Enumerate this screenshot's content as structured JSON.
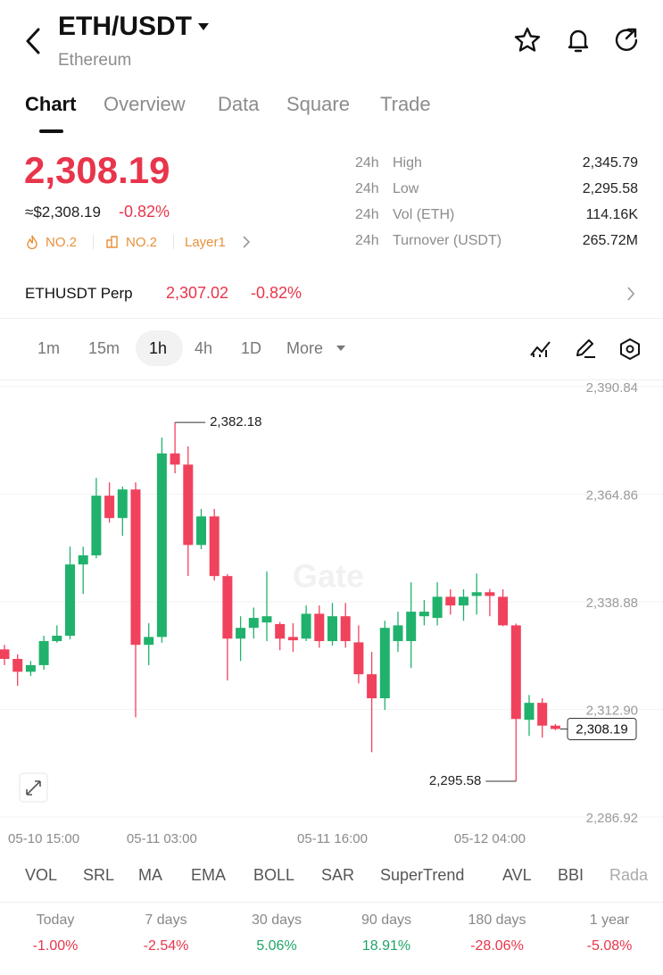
{
  "header": {
    "title": "ETH/USDT",
    "subtitle": "Ethereum"
  },
  "tabs": [
    "Chart",
    "Overview",
    "Data",
    "Square",
    "Trade"
  ],
  "price": {
    "last": "2,308.19",
    "approx": "≈$2,308.19",
    "change": "-0.82%"
  },
  "badges": [
    "NO.2",
    "NO.2",
    "Layer1"
  ],
  "stats": [
    {
      "period": "24h",
      "label": "High",
      "value": "2,345.79"
    },
    {
      "period": "24h",
      "label": "Low",
      "value": "2,295.58"
    },
    {
      "period": "24h",
      "label": "Vol (ETH)",
      "value": "114.16K"
    },
    {
      "period": "24h",
      "label": "Turnover (USDT)",
      "value": "265.72M"
    }
  ],
  "perp": {
    "name": "ETHUSDT Perp",
    "price": "2,307.02",
    "change": "-0.82%"
  },
  "intervals": [
    "1m",
    "15m",
    "1h",
    "4h",
    "1D",
    "More"
  ],
  "indicators": [
    "VOL",
    "SRL",
    "MA",
    "EMA",
    "BOLL",
    "SAR",
    "SuperTrend",
    "AVL",
    "BBI",
    "Rada"
  ],
  "performance": [
    {
      "period": "Today",
      "change": "-1.00%",
      "color": "#e8354b"
    },
    {
      "period": "7 days",
      "change": "-2.54%",
      "color": "#e8354b"
    },
    {
      "period": "30 days",
      "change": "5.06%",
      "color": "#1fa567"
    },
    {
      "period": "90 days",
      "change": "18.91%",
      "color": "#1fa567"
    },
    {
      "period": "180 days",
      "change": "-28.06%",
      "color": "#e8354b"
    },
    {
      "period": "1 year",
      "change": "-5.08%",
      "color": "#e8354b"
    }
  ],
  "chart_data": {
    "type": "candlestick",
    "watermark": "Gate",
    "up_color": "#20b26c",
    "down_color": "#f0425c",
    "categories": [
      null,
      null,
      null,
      "05-10 15:00",
      null,
      null,
      null,
      null,
      null,
      null,
      null,
      null,
      "05-11 03:00",
      null,
      null,
      null,
      null,
      null,
      null,
      null,
      null,
      null,
      null,
      null,
      null,
      "05-11 16:00",
      null,
      null,
      null,
      null,
      null,
      null,
      null,
      null,
      null,
      null,
      null,
      "05-12 04:00",
      null,
      null,
      null,
      null,
      null
    ],
    "open": [
      2327.4,
      2325.1,
      2322.0,
      2323.6,
      2329.4,
      2330.7,
      2347.9,
      2350.1,
      2364.5,
      2359.1,
      2366.0,
      2328.5,
      2330.4,
      2374.7,
      2372.0,
      2352.6,
      2359.5,
      2345.1,
      2330.0,
      2332.6,
      2333.9,
      2333.5,
      2330.4,
      2330.0,
      2336.0,
      2329.4,
      2335.4,
      2329.1,
      2321.4,
      2315.6,
      2329.4,
      2329.4,
      2335.4,
      2335.0,
      2340.1,
      2338.0,
      2340.3,
      2341.2,
      2340.1,
      2333.2,
      2310.4,
      2314.5,
      2309.0
    ],
    "high": [
      2328.5,
      2326.2,
      2324.6,
      2330.7,
      2333.2,
      2352.2,
      2352.2,
      2368.8,
      2367.7,
      2366.7,
      2367.7,
      2333.7,
      2378.5,
      2382.18,
      2376.4,
      2361.3,
      2361.3,
      2345.6,
      2335.4,
      2337.5,
      2346.2,
      2334.0,
      2333.7,
      2338.0,
      2338.0,
      2338.6,
      2338.6,
      2333.2,
      2326.8,
      2334.3,
      2336.5,
      2343.6,
      2339.3,
      2343.6,
      2341.9,
      2341.9,
      2345.7,
      2342.0,
      2341.9,
      2333.6,
      2316.4,
      2315.6,
      2309.4
    ],
    "low": [
      2323.6,
      2318.6,
      2321.0,
      2322.5,
      2329.0,
      2329.8,
      2340.8,
      2349.4,
      2358.0,
      2354.8,
      2311.0,
      2323.6,
      2329.0,
      2369.9,
      2345.1,
      2351.6,
      2344.0,
      2319.9,
      2324.6,
      2330.0,
      2329.4,
      2327.2,
      2326.8,
      2329.4,
      2327.8,
      2328.3,
      2327.8,
      2319.2,
      2302.6,
      2312.8,
      2326.8,
      2322.9,
      2333.2,
      2333.2,
      2335.8,
      2334.3,
      2335.8,
      2335.4,
      2333.0,
      2295.58,
      2306.5,
      2306.1,
      2307.9
    ],
    "close": [
      2325.1,
      2322.0,
      2323.6,
      2329.4,
      2330.7,
      2347.9,
      2350.1,
      2364.5,
      2359.1,
      2366.0,
      2328.5,
      2330.4,
      2374.7,
      2372.0,
      2352.6,
      2359.5,
      2345.1,
      2330.0,
      2332.6,
      2335.0,
      2335.4,
      2330.0,
      2329.6,
      2336.0,
      2329.4,
      2335.4,
      2329.4,
      2321.4,
      2315.6,
      2332.6,
      2333.2,
      2336.5,
      2336.5,
      2340.1,
      2338.0,
      2340.1,
      2341.2,
      2340.3,
      2333.2,
      2310.6,
      2314.5,
      2309.0,
      2308.19
    ],
    "ylim": [
      2284.8,
      2391.9
    ],
    "yticks": [
      {
        "value": 2390.84,
        "label": "2,390.84"
      },
      {
        "value": 2364.86,
        "label": "2,364.86"
      },
      {
        "value": 2338.88,
        "label": "2,338.88"
      },
      {
        "value": 2312.9,
        "label": "2,312.90"
      },
      {
        "value": 2286.92,
        "label": "2,286.92"
      }
    ],
    "grid": true,
    "annotations": [
      {
        "value": 2382.18,
        "label": "2,382.18"
      },
      {
        "value": 2295.58,
        "label": "2,295.58"
      }
    ],
    "last_price": {
      "value": 2308.19,
      "label": "2,308.19"
    }
  }
}
